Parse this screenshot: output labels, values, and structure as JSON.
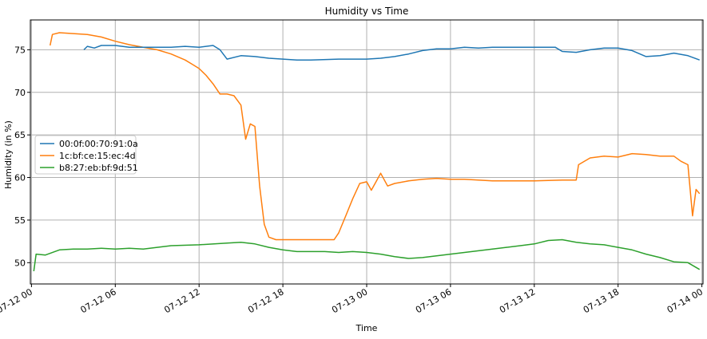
{
  "chart_data": {
    "type": "line",
    "title": "Humidity vs Time",
    "xlabel": "Time",
    "ylabel": "Humidity (in %)",
    "grid": true,
    "legend_position": "center-left",
    "x_unit": "datetime (MM-DD HH)",
    "xlim": [
      "07-12 00",
      "07-14 00"
    ],
    "ylim": [
      47.5,
      78.5
    ],
    "x_ticks": [
      "07-12 00",
      "07-12 06",
      "07-12 12",
      "07-12 18",
      "07-13 00",
      "07-13 06",
      "07-13 12",
      "07-13 18",
      "07-14 00"
    ],
    "y_ticks": [
      50,
      55,
      60,
      65,
      70,
      75
    ],
    "series": [
      {
        "name": "00:0f:00:70:91:0a",
        "color": "#1f77b4",
        "points": [
          [
            "07-12 03:45",
            75.0
          ],
          [
            "07-12 04:00",
            75.4
          ],
          [
            "07-12 04:30",
            75.2
          ],
          [
            "07-12 05:00",
            75.5
          ],
          [
            "07-12 06:00",
            75.5
          ],
          [
            "07-12 07:00",
            75.3
          ],
          [
            "07-12 08:00",
            75.3
          ],
          [
            "07-12 09:00",
            75.3
          ],
          [
            "07-12 10:00",
            75.3
          ],
          [
            "07-12 11:00",
            75.4
          ],
          [
            "07-12 12:00",
            75.3
          ],
          [
            "07-12 13:00",
            75.5
          ],
          [
            "07-12 13:30",
            75.0
          ],
          [
            "07-12 14:00",
            73.9
          ],
          [
            "07-12 15:00",
            74.3
          ],
          [
            "07-12 16:00",
            74.2
          ],
          [
            "07-12 17:00",
            74.0
          ],
          [
            "07-12 18:00",
            73.9
          ],
          [
            "07-12 19:00",
            73.8
          ],
          [
            "07-12 20:00",
            73.8
          ],
          [
            "07-12 22:00",
            73.9
          ],
          [
            "07-13 00:00",
            73.9
          ],
          [
            "07-13 01:00",
            74.0
          ],
          [
            "07-13 02:00",
            74.2
          ],
          [
            "07-13 03:00",
            74.5
          ],
          [
            "07-13 04:00",
            74.9
          ],
          [
            "07-13 05:00",
            75.1
          ],
          [
            "07-13 06:00",
            75.1
          ],
          [
            "07-13 07:00",
            75.3
          ],
          [
            "07-13 08:00",
            75.2
          ],
          [
            "07-13 09:00",
            75.3
          ],
          [
            "07-13 10:00",
            75.3
          ],
          [
            "07-13 12:00",
            75.3
          ],
          [
            "07-13 13:30",
            75.3
          ],
          [
            "07-13 14:00",
            74.8
          ],
          [
            "07-13 15:00",
            74.7
          ],
          [
            "07-13 16:00",
            75.0
          ],
          [
            "07-13 17:00",
            75.2
          ],
          [
            "07-13 18:00",
            75.2
          ],
          [
            "07-13 19:00",
            74.9
          ],
          [
            "07-13 20:00",
            74.2
          ],
          [
            "07-13 21:00",
            74.3
          ],
          [
            "07-13 22:00",
            74.6
          ],
          [
            "07-13 23:00",
            74.3
          ],
          [
            "07-13 23:50",
            73.8
          ]
        ]
      },
      {
        "name": "1c:bf:ce:15:ec:4d",
        "color": "#ff7f0e",
        "points": [
          [
            "07-12 01:20",
            75.5
          ],
          [
            "07-12 01:30",
            76.8
          ],
          [
            "07-12 02:00",
            77.0
          ],
          [
            "07-12 03:00",
            76.9
          ],
          [
            "07-12 04:00",
            76.8
          ],
          [
            "07-12 05:00",
            76.5
          ],
          [
            "07-12 06:00",
            76.0
          ],
          [
            "07-12 07:00",
            75.6
          ],
          [
            "07-12 08:00",
            75.3
          ],
          [
            "07-12 09:00",
            75.0
          ],
          [
            "07-12 10:00",
            74.5
          ],
          [
            "07-12 11:00",
            73.8
          ],
          [
            "07-12 11:30",
            73.3
          ],
          [
            "07-12 12:00",
            72.8
          ],
          [
            "07-12 12:30",
            72.0
          ],
          [
            "07-12 13:00",
            71.0
          ],
          [
            "07-12 13:30",
            69.8
          ],
          [
            "07-12 14:00",
            69.8
          ],
          [
            "07-12 14:30",
            69.6
          ],
          [
            "07-12 15:00",
            68.5
          ],
          [
            "07-12 15:20",
            64.5
          ],
          [
            "07-12 15:40",
            66.3
          ],
          [
            "07-12 16:00",
            66.0
          ],
          [
            "07-12 16:20",
            59.0
          ],
          [
            "07-12 16:40",
            54.5
          ],
          [
            "07-12 17:00",
            53.0
          ],
          [
            "07-12 17:30",
            52.7
          ],
          [
            "07-12 18:00",
            52.7
          ],
          [
            "07-12 19:00",
            52.7
          ],
          [
            "07-12 20:00",
            52.7
          ],
          [
            "07-12 21:00",
            52.7
          ],
          [
            "07-12 21:40",
            52.7
          ],
          [
            "07-12 22:00",
            53.5
          ],
          [
            "07-12 22:30",
            55.5
          ],
          [
            "07-12 23:00",
            57.5
          ],
          [
            "07-12 23:30",
            59.3
          ],
          [
            "07-13 00:00",
            59.5
          ],
          [
            "07-13 00:20",
            58.5
          ],
          [
            "07-13 00:40",
            59.5
          ],
          [
            "07-13 01:00",
            60.5
          ],
          [
            "07-13 01:30",
            59.0
          ],
          [
            "07-13 02:00",
            59.3
          ],
          [
            "07-13 03:00",
            59.6
          ],
          [
            "07-13 04:00",
            59.8
          ],
          [
            "07-13 05:00",
            59.9
          ],
          [
            "07-13 06:00",
            59.8
          ],
          [
            "07-13 07:00",
            59.8
          ],
          [
            "07-13 08:00",
            59.7
          ],
          [
            "07-13 09:00",
            59.6
          ],
          [
            "07-13 10:00",
            59.6
          ],
          [
            "07-13 12:00",
            59.6
          ],
          [
            "07-13 14:00",
            59.7
          ],
          [
            "07-13 15:00",
            59.7
          ],
          [
            "07-13 15:10",
            61.5
          ],
          [
            "07-13 16:00",
            62.3
          ],
          [
            "07-13 17:00",
            62.5
          ],
          [
            "07-13 18:00",
            62.4
          ],
          [
            "07-13 19:00",
            62.8
          ],
          [
            "07-13 20:00",
            62.7
          ],
          [
            "07-13 21:00",
            62.5
          ],
          [
            "07-13 22:00",
            62.5
          ],
          [
            "07-13 22:30",
            61.9
          ],
          [
            "07-13 23:00",
            61.5
          ],
          [
            "07-13 23:20",
            55.5
          ],
          [
            "07-13 23:35",
            58.6
          ],
          [
            "07-13 23:50",
            58.1
          ]
        ]
      },
      {
        "name": "b8:27:eb:bf:9d:51",
        "color": "#2ca02c",
        "points": [
          [
            "07-12 00:10",
            49.0
          ],
          [
            "07-12 00:20",
            51.0
          ],
          [
            "07-12 01:00",
            50.9
          ],
          [
            "07-12 02:00",
            51.5
          ],
          [
            "07-12 03:00",
            51.6
          ],
          [
            "07-12 04:00",
            51.6
          ],
          [
            "07-12 05:00",
            51.7
          ],
          [
            "07-12 06:00",
            51.6
          ],
          [
            "07-12 07:00",
            51.7
          ],
          [
            "07-12 08:00",
            51.6
          ],
          [
            "07-12 09:00",
            51.8
          ],
          [
            "07-12 10:00",
            52.0
          ],
          [
            "07-12 12:00",
            52.1
          ],
          [
            "07-12 14:00",
            52.3
          ],
          [
            "07-12 15:00",
            52.4
          ],
          [
            "07-12 16:00",
            52.2
          ],
          [
            "07-12 17:00",
            51.8
          ],
          [
            "07-12 18:00",
            51.5
          ],
          [
            "07-12 19:00",
            51.3
          ],
          [
            "07-12 20:00",
            51.3
          ],
          [
            "07-12 21:00",
            51.3
          ],
          [
            "07-12 22:00",
            51.2
          ],
          [
            "07-12 23:00",
            51.3
          ],
          [
            "07-13 00:00",
            51.2
          ],
          [
            "07-13 01:00",
            51.0
          ],
          [
            "07-13 02:00",
            50.7
          ],
          [
            "07-13 03:00",
            50.5
          ],
          [
            "07-13 04:00",
            50.6
          ],
          [
            "07-13 05:00",
            50.8
          ],
          [
            "07-13 06:00",
            51.0
          ],
          [
            "07-13 07:00",
            51.2
          ],
          [
            "07-13 08:00",
            51.4
          ],
          [
            "07-13 09:00",
            51.6
          ],
          [
            "07-13 10:00",
            51.8
          ],
          [
            "07-13 11:00",
            52.0
          ],
          [
            "07-13 12:00",
            52.2
          ],
          [
            "07-13 13:00",
            52.6
          ],
          [
            "07-13 14:00",
            52.7
          ],
          [
            "07-13 15:00",
            52.4
          ],
          [
            "07-13 16:00",
            52.2
          ],
          [
            "07-13 17:00",
            52.1
          ],
          [
            "07-13 18:00",
            51.8
          ],
          [
            "07-13 19:00",
            51.5
          ],
          [
            "07-13 20:00",
            51.0
          ],
          [
            "07-13 21:00",
            50.6
          ],
          [
            "07-13 22:00",
            50.1
          ],
          [
            "07-13 23:00",
            50.0
          ],
          [
            "07-13 23:50",
            49.2
          ]
        ]
      }
    ]
  }
}
